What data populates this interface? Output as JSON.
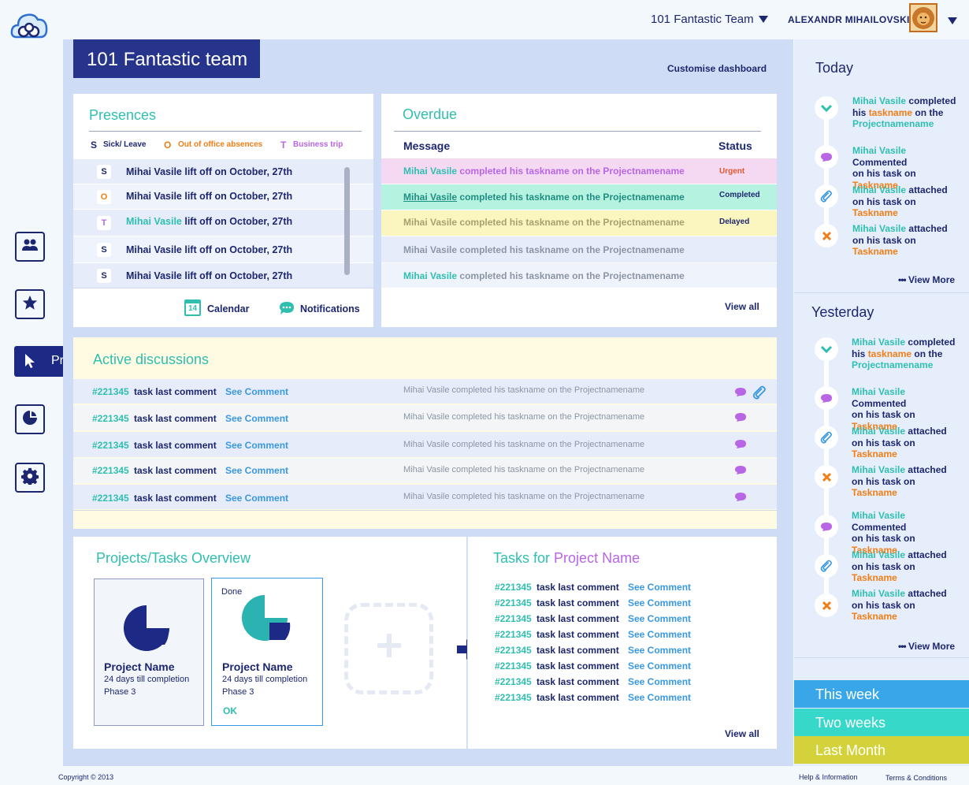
{
  "header": {
    "team_selector": "101 Fantastic Team",
    "user_name": "ALEXANDR MIHAILOVSKI"
  },
  "sidebar": {
    "active_label": "Projects"
  },
  "page": {
    "title": "101 Fantastic team",
    "customise": "Customise dashboard"
  },
  "presences": {
    "title": "Presences",
    "legend": [
      {
        "code": "S",
        "label": "Sick/ Leave"
      },
      {
        "code": "O",
        "label": "Out of office absences"
      },
      {
        "code": "T",
        "label": "Business trip"
      }
    ],
    "rows": [
      {
        "code": "S",
        "name": "Mihai Vasile",
        "text": "lift off on October, 27th"
      },
      {
        "code": "O",
        "name": "Mihai Vasile",
        "text": "lift off on October, 27th"
      },
      {
        "code": "T",
        "name": "Mihai Vasile",
        "text": "lift off on October, 27th"
      },
      {
        "code": "S",
        "name": "Mihai Vasile",
        "text": "lift off on October, 27th"
      },
      {
        "code": "S",
        "name": "Mihai Vasile",
        "text": "lift off on October, 27th"
      }
    ],
    "calendar_label": "Calendar",
    "calendar_day": "14",
    "notifications_label": "Notifications"
  },
  "overdue": {
    "title": "Overdue",
    "col_message": "Message",
    "col_status": "Status",
    "rows": [
      {
        "name": "Mihai Vasile",
        "text": "completed his taskname on  the Projectnamename",
        "status": "Urgent"
      },
      {
        "name": "Mihai Vasile",
        "text": "completed his taskname on  the Projectnamename",
        "status": "Completed"
      },
      {
        "name": "Mihai Vasile",
        "text": "completed his taskname on  the Projectnamename",
        "status": "Delayed"
      },
      {
        "name": "Mihai Vasile",
        "text": "completed his taskname on  the Projectnamename",
        "status": ""
      },
      {
        "name": "Mihai Vasile",
        "text": "completed his taskname on  the Projectnamename",
        "status": ""
      }
    ],
    "view_all": "View all"
  },
  "discussions": {
    "title": "Active discussions",
    "rows": [
      {
        "id": "#221345",
        "label": "task last comment",
        "link": "See Comment",
        "msg": "Mihai Vasile completed his taskname on  the Projectnamename"
      },
      {
        "id": "#221345",
        "label": "task last comment",
        "link": "See Comment",
        "msg": "Mihai Vasile completed his taskname on  the Projectnamename"
      },
      {
        "id": "#221345",
        "label": "task last comment",
        "link": "See Comment",
        "msg": "Mihai Vasile completed his taskname on  the Projectnamename"
      },
      {
        "id": "#221345",
        "label": "task last comment",
        "link": "See Comment",
        "msg": "Mihai Vasile completed his taskname on  the Projectnamename"
      },
      {
        "id": "#221345",
        "label": "task last comment",
        "link": "See Comment",
        "msg": "Mihai Vasile completed his taskname on  the Projectnamename"
      }
    ]
  },
  "overview": {
    "title": "Projects/Tasks  Overview",
    "cards": [
      {
        "tag": "",
        "name": "Project Name",
        "days": "24 days till completion",
        "phase": "Phase 3",
        "ok": ""
      },
      {
        "tag": "Done",
        "name": "Project Name",
        "days": "24 days till completion",
        "phase": "Phase 3",
        "ok": "OK"
      }
    ]
  },
  "tasks": {
    "title_prefix": "Tasks for",
    "title_project": "Project Name",
    "rows": [
      {
        "id": "#221345",
        "label": "task last comment",
        "link": "See Comment"
      },
      {
        "id": "#221345",
        "label": "task last comment",
        "link": "See Comment"
      },
      {
        "id": "#221345",
        "label": "task last comment",
        "link": "See Comment"
      },
      {
        "id": "#221345",
        "label": "task last comment",
        "link": "See Comment"
      },
      {
        "id": "#221345",
        "label": "task last comment",
        "link": "See Comment"
      },
      {
        "id": "#221345",
        "label": "task last comment",
        "link": "See Comment"
      },
      {
        "id": "#221345",
        "label": "task last comment",
        "link": "See Comment"
      },
      {
        "id": "#221345",
        "label": "task last comment",
        "link": "See Comment"
      }
    ],
    "view_all": "View all"
  },
  "activity": {
    "today_title": "Today",
    "yesterday_title": "Yesterday",
    "view_more": "View More",
    "today": [
      {
        "icon": "check",
        "name": "Mihai Vasile",
        "verb": "completed",
        "mid": "his",
        "task": "taskname",
        "tail": "on  the",
        "extra": "Projectnamename"
      },
      {
        "icon": "comment",
        "name": "Mihai Vasile",
        "verb": "Commented",
        "mid": "on his task on",
        "task": "Taskname",
        "tail": "",
        "extra": ""
      },
      {
        "icon": "attach",
        "name": "Mihai Vasile",
        "verb": "attached",
        "mid": "on his task on",
        "task": "Taskname",
        "tail": "",
        "extra": ""
      },
      {
        "icon": "cross",
        "name": "Mihai Vasile",
        "verb": "attached",
        "mid": "on his task on",
        "task": "Taskname",
        "tail": "",
        "extra": ""
      }
    ],
    "yesterday": [
      {
        "icon": "check",
        "name": "Mihai Vasile",
        "verb": "completed",
        "mid": "his",
        "task": "taskname",
        "tail": "on  the",
        "extra": "Projectnamename"
      },
      {
        "icon": "comment",
        "name": "Mihai Vasile",
        "verb": "Commented",
        "mid": "on his task on",
        "task": "Taskname",
        "tail": "",
        "extra": ""
      },
      {
        "icon": "attach",
        "name": "Mihai Vasile",
        "verb": "attached",
        "mid": "on his task on",
        "task": "Taskname",
        "tail": "",
        "extra": ""
      },
      {
        "icon": "cross",
        "name": "Mihai Vasile",
        "verb": "attached",
        "mid": "on his task on",
        "task": "Taskname",
        "tail": "",
        "extra": ""
      },
      {
        "icon": "comment",
        "name": "Mihai Vasile",
        "verb": "Commented",
        "mid": "on his task on",
        "task": "Taskname",
        "tail": "",
        "extra": ""
      },
      {
        "icon": "attach",
        "name": "Mihai Vasile",
        "verb": "attached",
        "mid": "on his task on",
        "task": "Taskname",
        "tail": "",
        "extra": ""
      },
      {
        "icon": "cross",
        "name": "Mihai Vasile",
        "verb": "attached",
        "mid": "on his task on",
        "task": "Taskname",
        "tail": "",
        "extra": ""
      }
    ]
  },
  "periods": [
    {
      "label": "This week",
      "color": "#3aa6ea"
    },
    {
      "label": "Two weeks",
      "color": "#35d8c9"
    },
    {
      "label": "Last Month",
      "color": "#d4d23b"
    }
  ],
  "footer": {
    "copyright": "Copyright © 2013",
    "help": "Help & Information",
    "terms": "Terms & Conditions"
  },
  "colors": {
    "navy": "#1c2770",
    "teal": "#2fbfb0",
    "purple": "#b865e6",
    "orange": "#f07e16"
  }
}
